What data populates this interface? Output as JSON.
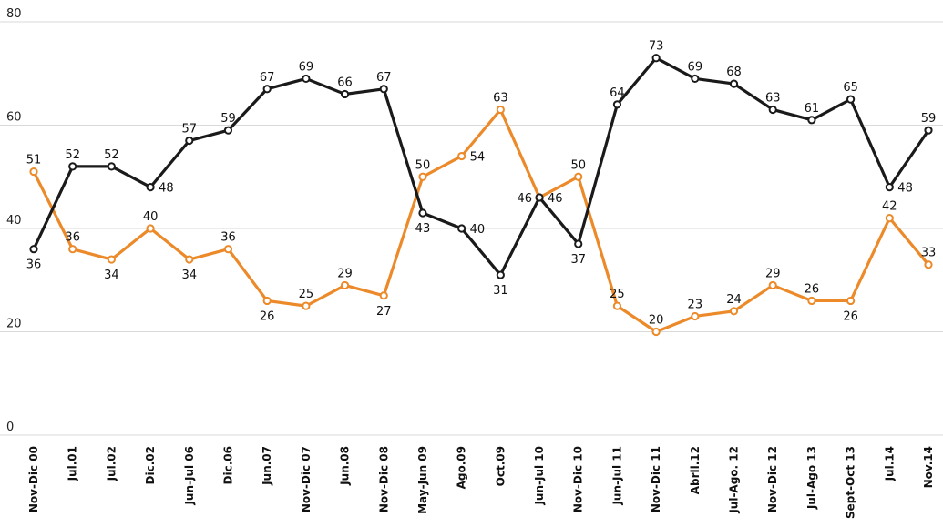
{
  "chart_data": {
    "type": "line",
    "title": "",
    "xlabel": "",
    "ylabel": "",
    "ylim": [
      0,
      80
    ],
    "yticks": [
      0,
      20,
      40,
      60,
      80
    ],
    "grid": true,
    "categories": [
      "Nov-Dic 00",
      "Jul.01",
      "Jul.02",
      "Dic.02",
      "Jun-Jul 06",
      "Dic.06",
      "Jun.07",
      "Nov-Dic 07",
      "Jun.08",
      "Nov-Dic 08",
      "May-Jun 09",
      "Ago.09",
      "Oct.09",
      "Jun-Jul 10",
      "Nov-Dic 10",
      "Jun-Jul 11",
      "Nov-Dic 11",
      "Abril.12",
      "Jul-Ago. 12",
      "Nov-Dic 12",
      "Jul-Ago 13",
      "Sept-Oct 13",
      "Jul.14",
      "Nov.14"
    ],
    "series": [
      {
        "color": "#1a1a1a",
        "values": [
          36,
          52,
          52,
          48,
          57,
          59,
          67,
          69,
          66,
          67,
          43,
          40,
          31,
          46,
          37,
          64,
          73,
          69,
          68,
          63,
          61,
          65,
          48,
          59
        ],
        "label_pos": [
          "below",
          "above",
          "above",
          "right",
          "above",
          "above",
          "above",
          "above",
          "above",
          "above",
          "below",
          "right",
          "below",
          "left",
          "below",
          "above",
          "above",
          "above",
          "above",
          "above",
          "above",
          "above",
          "right",
          "above"
        ]
      },
      {
        "color": "#ec8a2a",
        "values": [
          51,
          36,
          34,
          40,
          34,
          36,
          26,
          25,
          29,
          27,
          50,
          54,
          63,
          46,
          50,
          25,
          20,
          23,
          24,
          29,
          26,
          26,
          42,
          33
        ],
        "label_pos": [
          "above",
          "above",
          "below",
          "above",
          "below",
          "above",
          "below",
          "above",
          "above",
          "below",
          "above",
          "right",
          "above",
          "right",
          "above",
          "above",
          "above",
          "above",
          "above",
          "above",
          "above",
          "below",
          "above",
          "above"
        ]
      }
    ]
  }
}
